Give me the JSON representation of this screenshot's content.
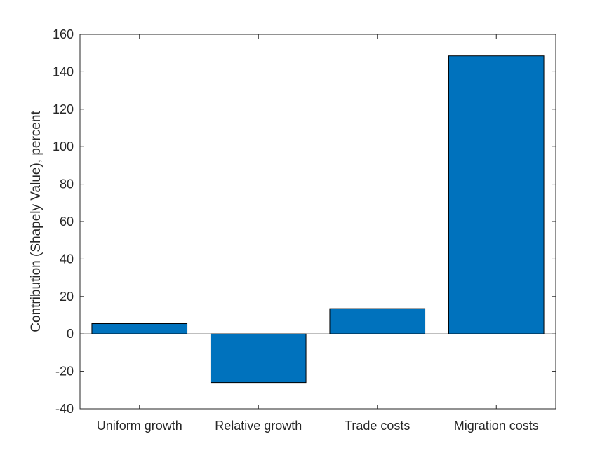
{
  "chart_data": {
    "type": "bar",
    "title": "",
    "xlabel": "",
    "ylabel": "Contribution (Shapely Value), percent",
    "categories": [
      "Uniform growth",
      "Relative growth",
      "Trade costs",
      "Migration costs"
    ],
    "values": [
      5.5,
      -26,
      13.5,
      148.5
    ],
    "ylim": [
      -40,
      160
    ],
    "yticks": [
      -40,
      -20,
      0,
      20,
      40,
      60,
      80,
      100,
      120,
      140,
      160
    ],
    "grid": false,
    "legend": "none",
    "colors": {
      "bar": "#0072BD",
      "bar_edge": "#000000",
      "axis": "#262626"
    }
  }
}
